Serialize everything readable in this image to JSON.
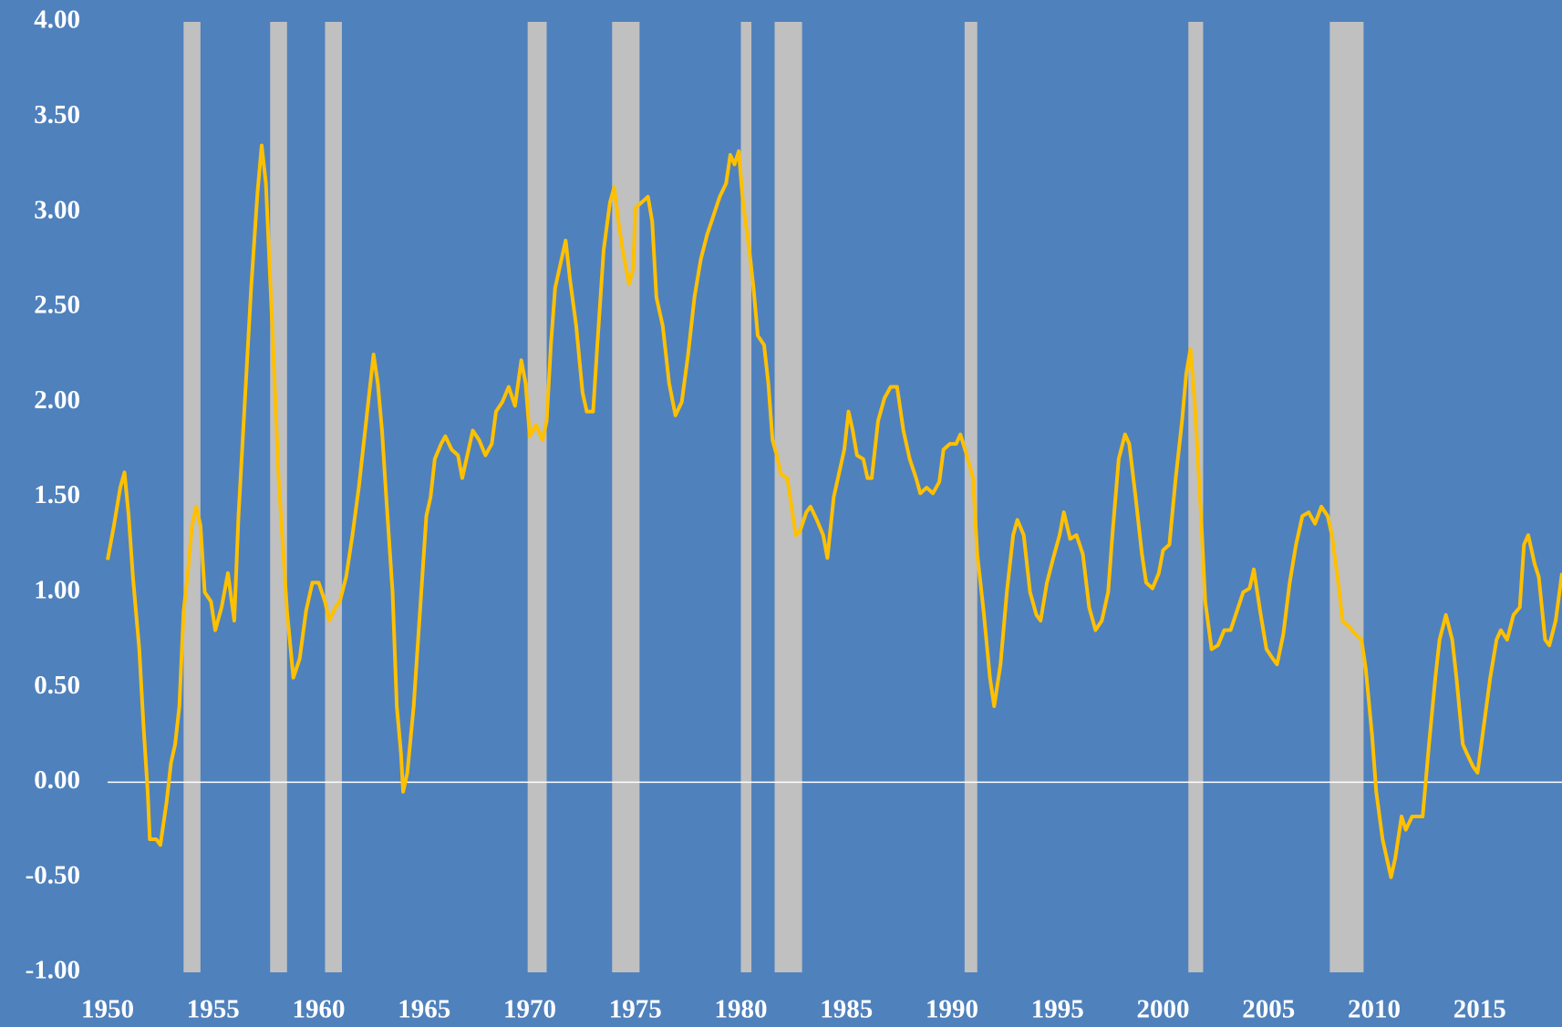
{
  "chart_data": {
    "type": "line",
    "background": "#4f81bd",
    "xlim": [
      1950,
      2018.9
    ],
    "ylim": [
      -1,
      4
    ],
    "xticks": [
      1950,
      1955,
      1960,
      1965,
      1970,
      1975,
      1980,
      1985,
      1990,
      1995,
      2000,
      2005,
      2010,
      2015
    ],
    "yticks": [
      {
        "value": 4,
        "label": "4.00"
      },
      {
        "value": 3.5,
        "label": "3.50"
      },
      {
        "value": 3,
        "label": "3.00"
      },
      {
        "value": 2.5,
        "label": "2.50"
      },
      {
        "value": 2,
        "label": "2.00"
      },
      {
        "value": 1.5,
        "label": "1.50"
      },
      {
        "value": 1,
        "label": "1.00"
      },
      {
        "value": 0.5,
        "label": "0.50"
      },
      {
        "value": 0,
        "label": "0.00"
      },
      {
        "value": -0.5,
        "label": "-0.50"
      },
      {
        "value": -1,
        "label": "-1.00"
      }
    ],
    "zero_line": true,
    "shading": {
      "color": "#c0c0c0",
      "ranges": [
        [
          1953.6,
          1954.4
        ],
        [
          1957.7,
          1958.5
        ],
        [
          1960.3,
          1961.1
        ],
        [
          1969.9,
          1970.8
        ],
        [
          1973.9,
          1975.2
        ],
        [
          1980.0,
          1980.5
        ],
        [
          1981.6,
          1982.9
        ],
        [
          1990.6,
          1991.2
        ],
        [
          2001.2,
          2001.9
        ],
        [
          2007.9,
          2009.5
        ]
      ]
    },
    "series": [
      {
        "color": "#ffc000",
        "x": [
          1950.0,
          1950.3,
          1950.6,
          1950.8,
          1951.0,
          1951.2,
          1951.5,
          1951.7,
          1951.9,
          1952.0,
          1952.3,
          1952.5,
          1952.8,
          1953.0,
          1953.2,
          1953.4,
          1953.6,
          1953.8,
          1954.0,
          1954.2,
          1954.4,
          1954.6,
          1954.9,
          1955.1,
          1955.4,
          1955.7,
          1956.0,
          1956.2,
          1956.5,
          1956.8,
          1957.1,
          1957.3,
          1957.5,
          1957.8,
          1958.1,
          1958.5,
          1958.8,
          1959.1,
          1959.4,
          1959.7,
          1960.0,
          1960.3,
          1960.5,
          1960.8,
          1961.0,
          1961.3,
          1961.6,
          1961.9,
          1962.2,
          1962.4,
          1962.6,
          1962.8,
          1963.0,
          1963.2,
          1963.5,
          1963.7,
          1963.9,
          1964.0,
          1964.2,
          1964.5,
          1964.8,
          1965.1,
          1965.3,
          1965.5,
          1965.8,
          1966.0,
          1966.3,
          1966.6,
          1966.8,
          1967.0,
          1967.3,
          1967.6,
          1967.9,
          1968.2,
          1968.4,
          1968.7,
          1969.0,
          1969.3,
          1969.6,
          1969.8,
          1970.0,
          1970.3,
          1970.6,
          1970.8,
          1971.0,
          1971.2,
          1971.5,
          1971.7,
          1971.9,
          1972.2,
          1972.5,
          1972.7,
          1973.0,
          1973.2,
          1973.5,
          1973.8,
          1974.0,
          1974.2,
          1974.4,
          1974.7,
          1974.9,
          1975.0,
          1975.3,
          1975.6,
          1975.8,
          1976.0,
          1976.3,
          1976.6,
          1976.9,
          1977.2,
          1977.5,
          1977.8,
          1978.1,
          1978.4,
          1978.7,
          1979.0,
          1979.3,
          1979.5,
          1979.7,
          1979.9,
          1980.1,
          1980.4,
          1980.6,
          1980.8,
          1981.1,
          1981.3,
          1981.5,
          1981.7,
          1981.9,
          1982.2,
          1982.4,
          1982.6,
          1982.8,
          1983.1,
          1983.3,
          1983.6,
          1983.9,
          1984.1,
          1984.4,
          1984.6,
          1984.9,
          1985.1,
          1985.3,
          1985.5,
          1985.8,
          1986.0,
          1986.2,
          1986.5,
          1986.8,
          1987.1,
          1987.4,
          1987.7,
          1988.0,
          1988.3,
          1988.5,
          1988.8,
          1989.1,
          1989.4,
          1989.6,
          1989.9,
          1990.2,
          1990.4,
          1990.7,
          1991.0,
          1991.2,
          1991.5,
          1991.8,
          1992.0,
          1992.3,
          1992.6,
          1992.9,
          1993.1,
          1993.4,
          1993.7,
          1994.0,
          1994.2,
          1994.5,
          1994.8,
          1995.1,
          1995.3,
          1995.6,
          1995.9,
          1996.2,
          1996.5,
          1996.8,
          1997.1,
          1997.4,
          1997.6,
          1997.9,
          1998.2,
          1998.4,
          1998.7,
          1999.0,
          1999.2,
          1999.5,
          1999.8,
          2000.0,
          2000.3,
          2000.6,
          2000.9,
          2001.1,
          2001.3,
          2001.5,
          2001.8,
          2002.0,
          2002.3,
          2002.6,
          2002.9,
          2003.2,
          2003.5,
          2003.8,
          2004.1,
          2004.3,
          2004.6,
          2004.9,
          2005.2,
          2005.4,
          2005.7,
          2006.0,
          2006.3,
          2006.6,
          2006.9,
          2007.2,
          2007.5,
          2007.8,
          2008.0,
          2008.3,
          2008.5,
          2008.8,
          2009.1,
          2009.4,
          2009.6,
          2009.9,
          2010.1,
          2010.4,
          2010.6,
          2010.8,
          2011.0,
          2011.3,
          2011.5,
          2011.8,
          2012.0,
          2012.3,
          2012.6,
          2012.9,
          2013.1,
          2013.4,
          2013.7,
          2013.9,
          2014.2,
          2014.4,
          2014.7,
          2014.9,
          2015.2,
          2015.5,
          2015.8,
          2016.0,
          2016.3,
          2016.6,
          2016.9,
          2017.1,
          2017.3,
          2017.6,
          2017.8,
          2018.1,
          2018.3,
          2018.6,
          2018.9
        ],
        "values": [
          1.17,
          1.35,
          1.55,
          1.63,
          1.4,
          1.08,
          0.7,
          0.3,
          -0.05,
          -0.3,
          -0.3,
          -0.33,
          -0.1,
          0.1,
          0.2,
          0.4,
          0.9,
          1.1,
          1.35,
          1.45,
          1.35,
          1.0,
          0.95,
          0.8,
          0.92,
          1.1,
          0.85,
          1.4,
          2.0,
          2.6,
          3.1,
          3.35,
          3.15,
          2.4,
          1.6,
          0.9,
          0.55,
          0.65,
          0.9,
          1.05,
          1.05,
          0.95,
          0.85,
          0.92,
          0.95,
          1.08,
          1.3,
          1.55,
          1.85,
          2.05,
          2.25,
          2.1,
          1.85,
          1.5,
          1.0,
          0.4,
          0.15,
          -0.05,
          0.05,
          0.4,
          0.9,
          1.4,
          1.5,
          1.7,
          1.78,
          1.82,
          1.75,
          1.72,
          1.6,
          1.7,
          1.85,
          1.8,
          1.72,
          1.78,
          1.95,
          2.0,
          2.08,
          1.98,
          2.22,
          2.1,
          1.82,
          1.88,
          1.8,
          1.9,
          2.3,
          2.6,
          2.75,
          2.85,
          2.65,
          2.4,
          2.05,
          1.95,
          1.95,
          2.3,
          2.8,
          3.05,
          3.13,
          2.95,
          2.8,
          2.62,
          2.7,
          3.02,
          3.05,
          3.08,
          2.95,
          2.55,
          2.4,
          2.1,
          1.93,
          2.0,
          2.25,
          2.55,
          2.75,
          2.88,
          2.98,
          3.08,
          3.15,
          3.3,
          3.25,
          3.32,
          3.05,
          2.8,
          2.6,
          2.35,
          2.3,
          2.1,
          1.8,
          1.72,
          1.62,
          1.6,
          1.45,
          1.3,
          1.32,
          1.42,
          1.45,
          1.38,
          1.3,
          1.18,
          1.5,
          1.6,
          1.75,
          1.95,
          1.85,
          1.72,
          1.7,
          1.6,
          1.6,
          1.9,
          2.02,
          2.08,
          2.08,
          1.85,
          1.7,
          1.6,
          1.52,
          1.55,
          1.52,
          1.58,
          1.75,
          1.78,
          1.78,
          1.83,
          1.72,
          1.6,
          1.2,
          0.9,
          0.55,
          0.4,
          0.62,
          1.0,
          1.3,
          1.38,
          1.3,
          1.0,
          0.88,
          0.85,
          1.05,
          1.18,
          1.3,
          1.42,
          1.28,
          1.3,
          1.2,
          0.92,
          0.8,
          0.85,
          1.0,
          1.3,
          1.7,
          1.83,
          1.78,
          1.5,
          1.2,
          1.05,
          1.02,
          1.1,
          1.22,
          1.25,
          1.6,
          1.9,
          2.15,
          2.28,
          2.0,
          1.4,
          0.95,
          0.7,
          0.72,
          0.8,
          0.8,
          0.9,
          1.0,
          1.02,
          1.12,
          0.9,
          0.7,
          0.65,
          0.62,
          0.78,
          1.05,
          1.25,
          1.4,
          1.42,
          1.36,
          1.45,
          1.4,
          1.3,
          1.05,
          0.85,
          0.82,
          0.78,
          0.75,
          0.6,
          0.25,
          -0.05,
          -0.3,
          -0.4,
          -0.5,
          -0.4,
          -0.18,
          -0.25,
          -0.18,
          -0.18,
          -0.18,
          0.2,
          0.55,
          0.75,
          0.88,
          0.75,
          0.55,
          0.2,
          0.15,
          0.08,
          0.05,
          0.3,
          0.55,
          0.75,
          0.8,
          0.75,
          0.88,
          0.92,
          1.25,
          1.3,
          1.15,
          1.08,
          0.75,
          0.72,
          0.85,
          1.1
        ]
      }
    ]
  }
}
